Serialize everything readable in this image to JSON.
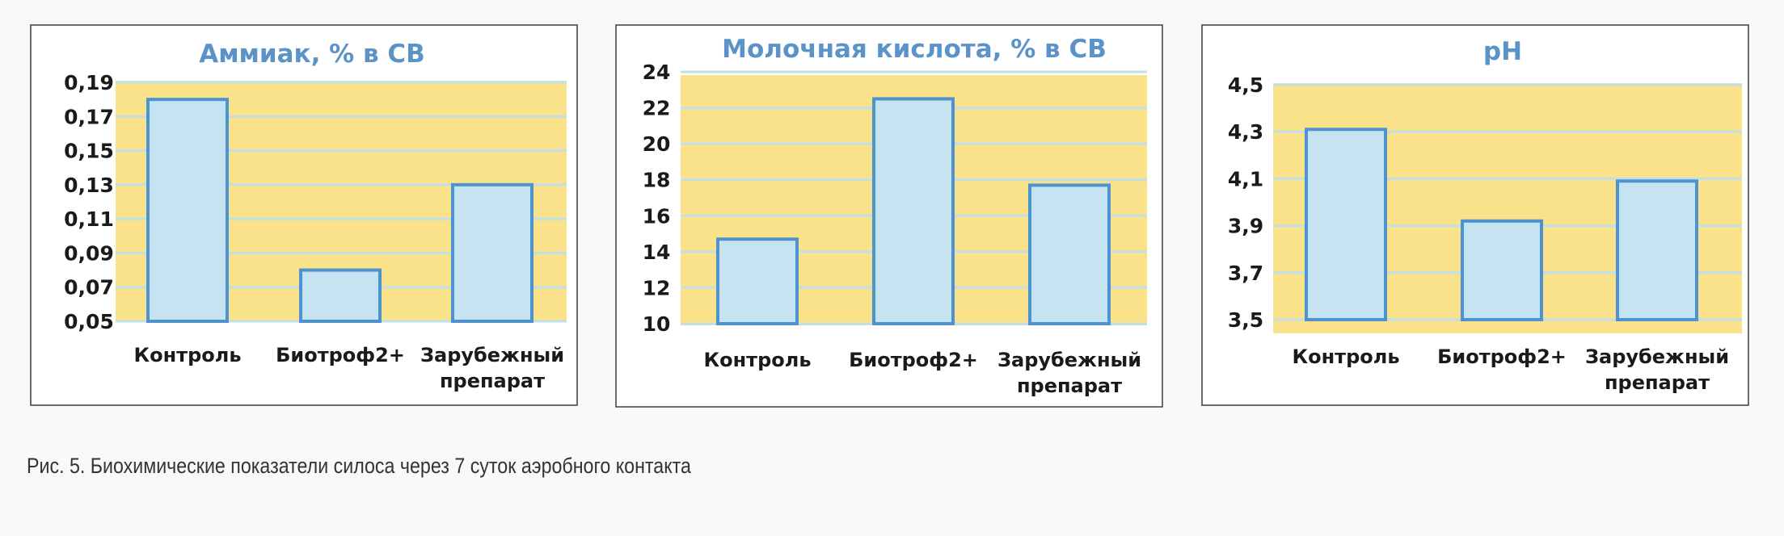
{
  "colors": {
    "plot_background": "#f9e28a",
    "bar_fill": "#c6e3f1",
    "bar_stroke": "#4d93cf",
    "gridline": "#bfe0ea",
    "title": "#5b92c8",
    "frame": "#3a3a3a"
  },
  "caption": "Рис. 5. Биохимические показатели силоса через 7 суток аэробного контакта",
  "chart_data": [
    {
      "type": "bar",
      "title": "Аммиак, % в СВ",
      "categories": [
        [
          "Контроль"
        ],
        [
          "Биотроф2+"
        ],
        [
          "Зарубежный",
          "препарат"
        ]
      ],
      "values": [
        0.18,
        0.08,
        0.13
      ],
      "ylim": [
        0.05,
        0.19
      ],
      "yticks": [
        "0,19",
        "0,17",
        "0,15",
        "0,13",
        "0,11",
        "0,09",
        "0,07",
        "0,05"
      ],
      "ytick_values": [
        0.19,
        0.17,
        0.15,
        0.13,
        0.11,
        0.09,
        0.07,
        0.05
      ],
      "grid": true,
      "legend": "none"
    },
    {
      "type": "bar",
      "title": "Молочная кислота, % в СВ",
      "categories": [
        [
          "Контроль"
        ],
        [
          "Биотроф2+"
        ],
        [
          "Зарубежный",
          "препарат"
        ]
      ],
      "values": [
        14.7,
        22.5,
        17.7
      ],
      "ylim": [
        10,
        24
      ],
      "yticks": [
        "24",
        "22",
        "20",
        "18",
        "16",
        "14",
        "12",
        "10"
      ],
      "ytick_values": [
        24,
        22,
        20,
        18,
        16,
        14,
        12,
        10
      ],
      "grid": true,
      "legend": "none"
    },
    {
      "type": "bar",
      "title": "pH",
      "categories": [
        [
          "Контроль"
        ],
        [
          "Биотроф2+"
        ],
        [
          "Зарубежный",
          "препарат"
        ]
      ],
      "values": [
        4.31,
        3.92,
        4.09
      ],
      "ylim": [
        3.5,
        4.5
      ],
      "yticks": [
        "4,5",
        "4,3",
        "4,1",
        "3,9",
        "3,7",
        "3,5"
      ],
      "ytick_values": [
        4.5,
        4.3,
        4.1,
        3.9,
        3.7,
        3.5
      ],
      "grid": true,
      "legend": "none"
    }
  ]
}
